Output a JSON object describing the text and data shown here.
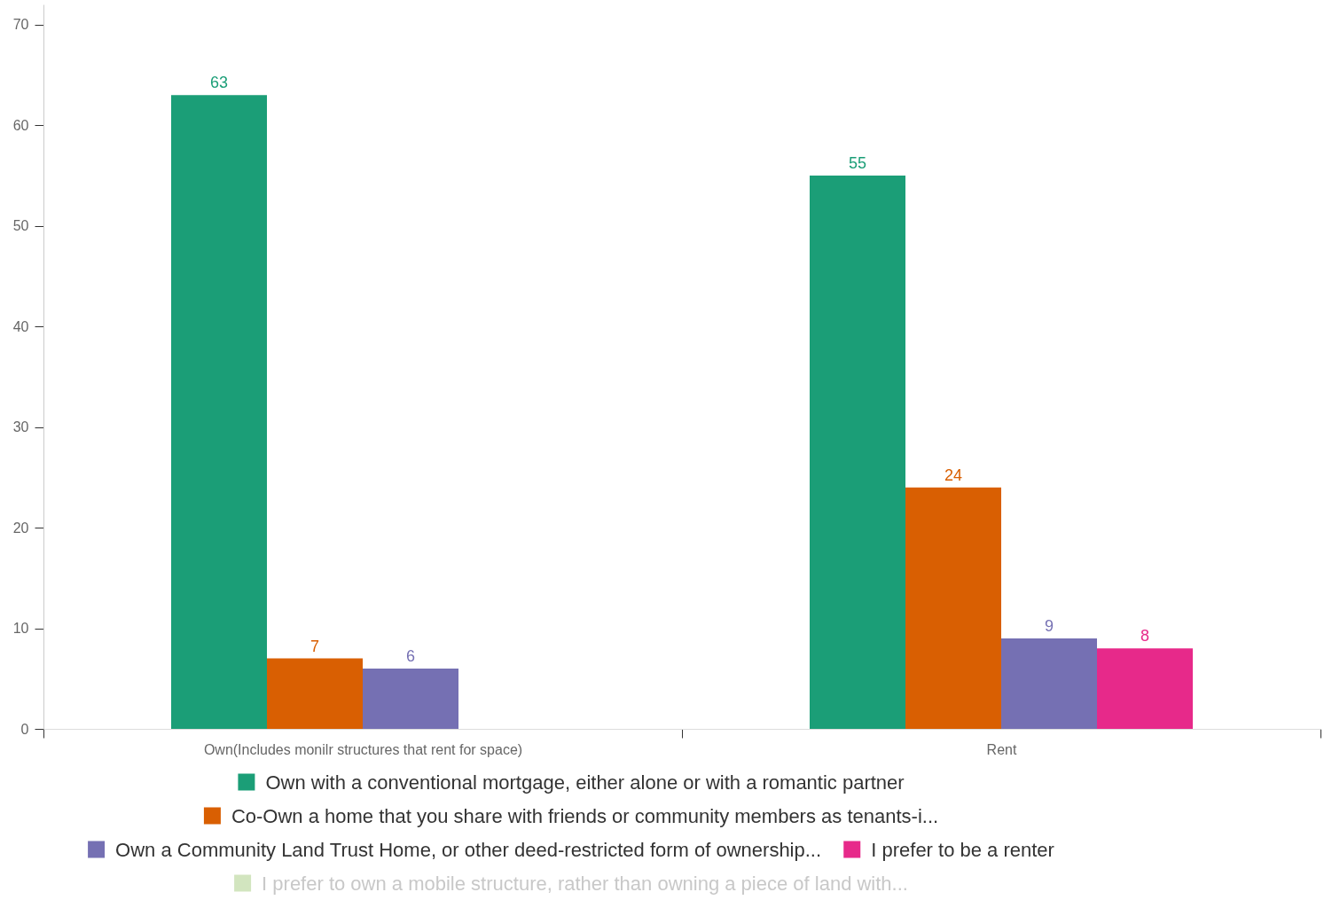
{
  "chart_data": {
    "type": "bar",
    "categories": [
      "Own(Includes monilr structures that rent for space)",
      "Rent"
    ],
    "series": [
      {
        "name": "Own with a conventional mortgage, either alone or with a romantic partner",
        "color": "#1b9e77",
        "values": [
          63,
          55
        ]
      },
      {
        "name": "Co-Own a home that you share with friends or community members as tenants-i...",
        "color": "#d95f02",
        "values": [
          7,
          24
        ]
      },
      {
        "name": "Own a Community Land Trust Home, or other deed-restricted form of ownership...",
        "color": "#7570b3",
        "values": [
          6,
          9
        ]
      },
      {
        "name": "I prefer to be a renter",
        "color": "#e7298a",
        "values": [
          null,
          8
        ]
      },
      {
        "name": "I prefer to own a mobile structure, rather than owning a piece of land with...",
        "color": "#d2e5bf",
        "values": [
          null,
          null
        ]
      }
    ],
    "ylim": [
      0,
      72
    ],
    "yticks": [
      0,
      10,
      20,
      30,
      40,
      50,
      60,
      70
    ],
    "data_labels": true,
    "legend": "bottom",
    "grid": false
  }
}
